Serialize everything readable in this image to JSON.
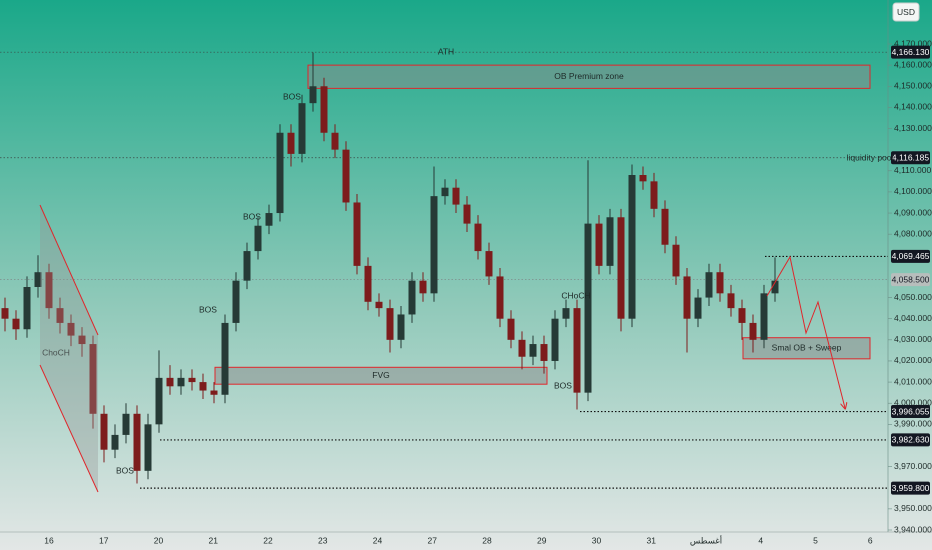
{
  "chart_data": {
    "type": "candlestick",
    "currency_button": "USD",
    "categories": [
      "16",
      "17",
      "20",
      "21",
      "22",
      "23",
      "24",
      "27",
      "28",
      "29",
      "30",
      "31",
      "أغسطس",
      "4",
      "5",
      "6"
    ],
    "ylim": [
      3940,
      4170
    ],
    "yticks": [
      {
        "value": 4170,
        "label": "4,170.000"
      },
      {
        "value": 4160,
        "label": "4,160.000"
      },
      {
        "value": 4150,
        "label": "4,150.000"
      },
      {
        "value": 4140,
        "label": "4,140.000"
      },
      {
        "value": 4130,
        "label": "4,130.000"
      },
      {
        "value": 4110,
        "label": "4,110.000"
      },
      {
        "value": 4100,
        "label": "4,100.000"
      },
      {
        "value": 4090,
        "label": "4,090.000"
      },
      {
        "value": 4080,
        "label": "4,080.000"
      },
      {
        "value": 4050,
        "label": "4,050.000"
      },
      {
        "value": 4040,
        "label": "4,040.000"
      },
      {
        "value": 4030,
        "label": "4,030.000"
      },
      {
        "value": 4020,
        "label": "4,020.000"
      },
      {
        "value": 4010,
        "label": "4,010.000"
      },
      {
        "value": 4000,
        "label": "4,000.000"
      },
      {
        "value": 3990,
        "label": "3,990.000"
      },
      {
        "value": 3970,
        "label": "3,970.000"
      },
      {
        "value": 3950,
        "label": "3,950.000"
      },
      {
        "value": 3940,
        "label": "3,940.000"
      }
    ],
    "up_color": "#263a36",
    "down_color": "#7d1c1c",
    "candles": [
      [
        4045,
        4050,
        4034,
        4040
      ],
      [
        4040,
        4044,
        4030,
        4035
      ],
      [
        4035,
        4060,
        4031,
        4055
      ],
      [
        4055,
        4070,
        4050,
        4062
      ],
      [
        4062,
        4066,
        4040,
        4045
      ],
      [
        4045,
        4050,
        4033,
        4038
      ],
      [
        4038,
        4042,
        4027,
        4032
      ],
      [
        4032,
        4036,
        4022,
        4028
      ],
      [
        4028,
        4032,
        3988,
        3995
      ],
      [
        3995,
        3999,
        3972,
        3978
      ],
      [
        3978,
        3990,
        3974,
        3985
      ],
      [
        3985,
        4000,
        3981,
        3995
      ],
      [
        3995,
        3999,
        3962,
        3968
      ],
      [
        3968,
        3995,
        3964,
        3990
      ],
      [
        3990,
        4025,
        3986,
        4012
      ],
      [
        4012,
        4018,
        4004,
        4008
      ],
      [
        4008,
        4016,
        4004,
        4012
      ],
      [
        4012,
        4016,
        4006,
        4010
      ],
      [
        4010,
        4014,
        4002,
        4006
      ],
      [
        4006,
        4010,
        4000,
        4004
      ],
      [
        4004,
        4042,
        4000,
        4038
      ],
      [
        4038,
        4062,
        4034,
        4058
      ],
      [
        4058,
        4076,
        4054,
        4072
      ],
      [
        4072,
        4088,
        4068,
        4084
      ],
      [
        4084,
        4094,
        4080,
        4090
      ],
      [
        4090,
        4132,
        4086,
        4128
      ],
      [
        4128,
        4132,
        4112,
        4118
      ],
      [
        4118,
        4146,
        4114,
        4142
      ],
      [
        4142,
        4166,
        4138,
        4150
      ],
      [
        4150,
        4154,
        4124,
        4128
      ],
      [
        4128,
        4132,
        4116,
        4120
      ],
      [
        4120,
        4124,
        4091,
        4095
      ],
      [
        4095,
        4099,
        4061,
        4065
      ],
      [
        4065,
        4069,
        4044,
        4048
      ],
      [
        4048,
        4052,
        4041,
        4045
      ],
      [
        4045,
        4049,
        4024,
        4030
      ],
      [
        4030,
        4046,
        4026,
        4042
      ],
      [
        4042,
        4062,
        4038,
        4058
      ],
      [
        4058,
        4062,
        4048,
        4052
      ],
      [
        4052,
        4112,
        4048,
        4098
      ],
      [
        4098,
        4106,
        4094,
        4102
      ],
      [
        4102,
        4106,
        4090,
        4094
      ],
      [
        4094,
        4098,
        4081,
        4085
      ],
      [
        4085,
        4089,
        4068,
        4072
      ],
      [
        4072,
        4076,
        4056,
        4060
      ],
      [
        4060,
        4064,
        4036,
        4040
      ],
      [
        4040,
        4044,
        4026,
        4030
      ],
      [
        4030,
        4034,
        4016,
        4022
      ],
      [
        4022,
        4032,
        4018,
        4028
      ],
      [
        4028,
        4032,
        4014,
        4020
      ],
      [
        4020,
        4044,
        4016,
        4040
      ],
      [
        4040,
        4049,
        4036,
        4045
      ],
      [
        4045,
        4049,
        3997,
        4005
      ],
      [
        4005,
        4115,
        4001,
        4085
      ],
      [
        4085,
        4089,
        4061,
        4065
      ],
      [
        4065,
        4092,
        4061,
        4088
      ],
      [
        4088,
        4092,
        4034,
        4040
      ],
      [
        4040,
        4113,
        4036,
        4108
      ],
      [
        4108,
        4112,
        4101,
        4105
      ],
      [
        4105,
        4109,
        4088,
        4092
      ],
      [
        4092,
        4096,
        4071,
        4075
      ],
      [
        4075,
        4079,
        4056,
        4060
      ],
      [
        4060,
        4064,
        4024,
        4040
      ],
      [
        4040,
        4054,
        4036,
        4050
      ],
      [
        4050,
        4066,
        4046,
        4062
      ],
      [
        4062,
        4066,
        4048,
        4052
      ],
      [
        4052,
        4056,
        4041,
        4045
      ],
      [
        4045,
        4049,
        4030,
        4038
      ],
      [
        4038,
        4042,
        4024,
        4030
      ],
      [
        4030,
        4056,
        4026,
        4052
      ],
      [
        4052,
        4069,
        4048,
        4058
      ]
    ],
    "levels": [
      {
        "value": 4166.13,
        "label": "4,166.130"
      },
      {
        "value": 4116.185,
        "label": "4,116.185"
      },
      {
        "value": 4069.465,
        "label": "4,069.465"
      },
      {
        "value": 4058.5,
        "label": "4,058.500"
      },
      {
        "value": 3996.055,
        "label": "3,996.055"
      },
      {
        "value": 3982.63,
        "label": "3,982.630"
      },
      {
        "value": 3959.8,
        "label": "3,959.800"
      }
    ],
    "zones": [
      {
        "label": "OB Premium zone",
        "top": 4160,
        "bottom": 4149
      },
      {
        "label": "FVG",
        "top": 4017,
        "bottom": 4009
      },
      {
        "label": "Smal OB + Sweep",
        "top": 4031,
        "bottom": 4021
      }
    ],
    "annotations": [
      "ATH",
      "liquidity pool",
      "BOS",
      "BOS",
      "BOS",
      "BOS",
      "BOS",
      "ChoCH",
      "CHoCH"
    ]
  }
}
